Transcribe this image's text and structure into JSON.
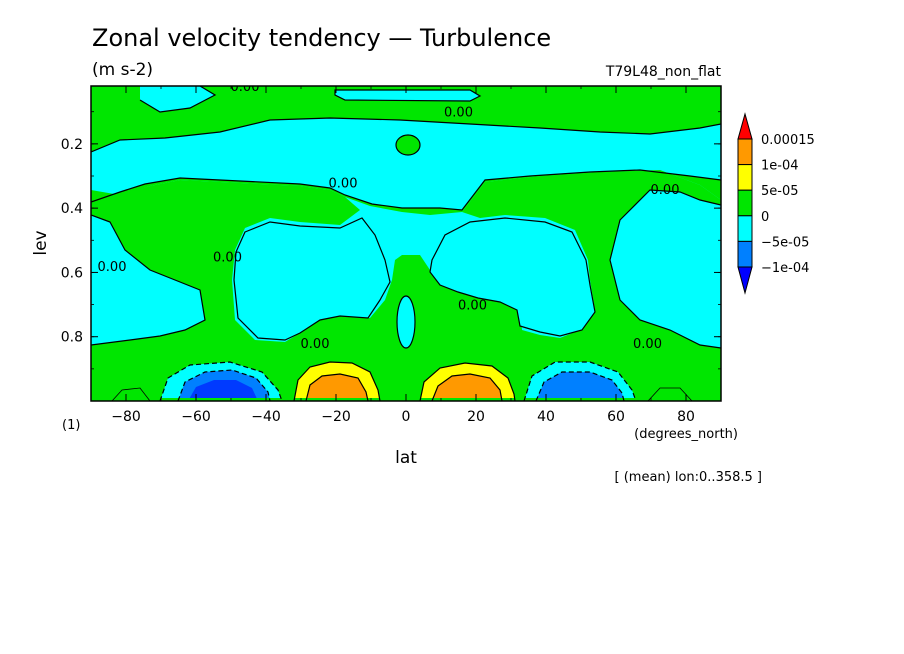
{
  "chart_data": {
    "type": "contour",
    "title": "Zonal velocity tendency — Turbulence",
    "units": "(m s-2)",
    "run_label": "T79L48_non_flat",
    "xlabel": "lat",
    "x_units": "(degrees_north)",
    "ylabel": "lev",
    "y_units": "(1)",
    "subset_note": "[ (mean) lon:0..358.5 ]",
    "x_range": [
      -90,
      90
    ],
    "y_range": [
      0.02,
      1.0
    ],
    "y_reversed": true,
    "x_ticks": [
      -80,
      -60,
      -40,
      -20,
      0,
      20,
      40,
      60,
      80
    ],
    "y_ticks": [
      0.2,
      0.4,
      0.6,
      0.8
    ],
    "colorbar": {
      "labels": [
        "0.00015",
        "1e-04",
        "5e-05",
        "0",
        "−5e-05",
        "−1e-04"
      ],
      "colors": [
        "#ff0000",
        "#ff9900",
        "#ffff00",
        "#00e600",
        "#00ffff",
        "#0080ff",
        "#0000ff"
      ],
      "extend": "both"
    },
    "contour_labels": [
      {
        "text": "0.00",
        "lat": -46,
        "lev": 0.02
      },
      {
        "text": "0.00",
        "lat": 15,
        "lev": 0.1
      },
      {
        "text": "0.00",
        "lat": -18,
        "lev": 0.32
      },
      {
        "text": "0.00",
        "lat": -84,
        "lev": 0.58
      },
      {
        "text": "0.00",
        "lat": -51,
        "lev": 0.55
      },
      {
        "text": "0.00",
        "lat": 19,
        "lev": 0.7
      },
      {
        "text": "0.00",
        "lat": -26,
        "lev": 0.82
      },
      {
        "text": "0.00",
        "lat": 69,
        "lev": 0.82
      },
      {
        "text": "0.00",
        "lat": 74,
        "lev": 0.34
      }
    ],
    "features": [
      {
        "name": "negative max",
        "lat": -52,
        "lev": 0.98,
        "value_class": "<-1e-04"
      },
      {
        "name": "positive max",
        "lat": -20,
        "lev": 0.98,
        "value_class": "5e-05..1e-04"
      },
      {
        "name": "positive max",
        "lat": 18,
        "lev": 0.98,
        "value_class": "5e-05..1e-04"
      },
      {
        "name": "negative max",
        "lat": 50,
        "lev": 0.98,
        "value_class": "<-1e-04"
      }
    ]
  }
}
